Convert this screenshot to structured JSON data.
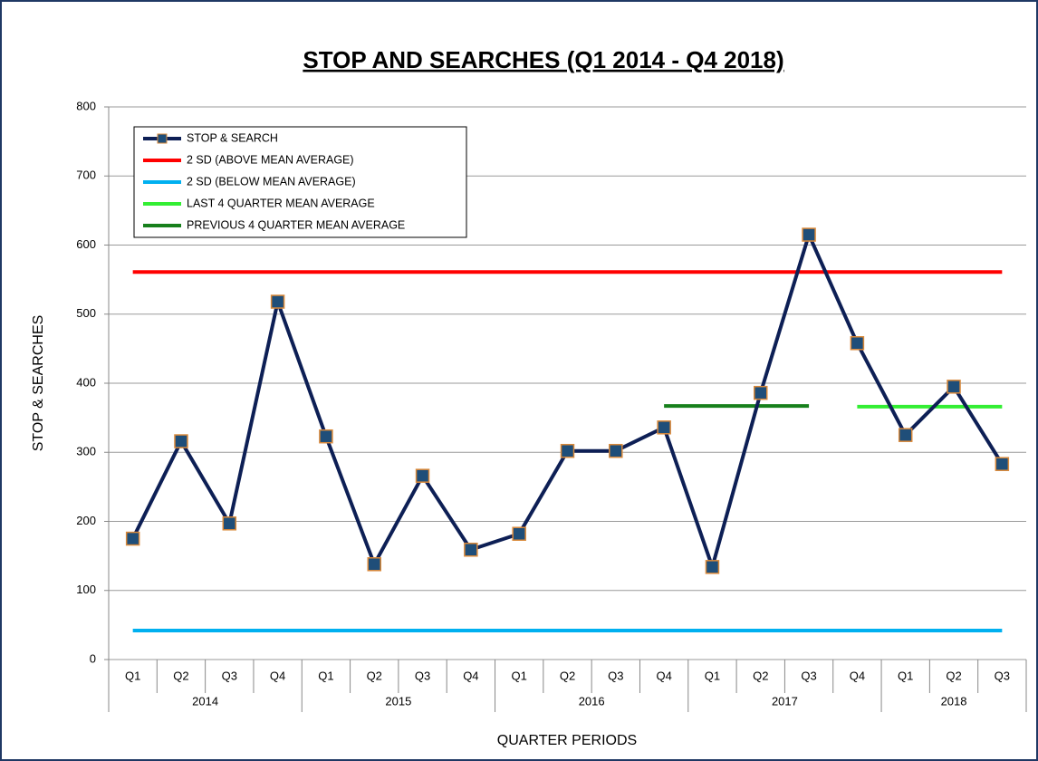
{
  "chart_data": {
    "type": "line",
    "title": "STOP AND SEARCHES (Q1 2014 - Q4 2018)",
    "y_label": "STOP & SEARCHES",
    "x_label": "QUARTER PERIODS",
    "categories": [
      "Q1",
      "Q2",
      "Q3",
      "Q4",
      "Q1",
      "Q2",
      "Q3",
      "Q4",
      "Q1",
      "Q2",
      "Q3",
      "Q4",
      "Q1",
      "Q2",
      "Q3",
      "Q4",
      "Q1",
      "Q2",
      "Q3"
    ],
    "x_groups": [
      {
        "name": "2014",
        "size": 4
      },
      {
        "name": "2015",
        "size": 4
      },
      {
        "name": "2016",
        "size": 4
      },
      {
        "name": "2017",
        "size": 4
      },
      {
        "name": "2018",
        "size": 3
      }
    ],
    "series": [
      {
        "name": "STOP & SEARCH",
        "color": "#0d1f55",
        "marker": "square",
        "marker_fill": "#1f4e79",
        "marker_stroke": "#d9893a",
        "values": [
          175,
          316,
          197,
          518,
          323,
          138,
          266,
          159,
          182,
          302,
          302,
          336,
          134,
          386,
          615,
          458,
          325,
          395,
          283
        ]
      },
      {
        "name": "2 SD (ABOVE MEAN AVERAGE)",
        "color": "#ff0000",
        "values": [
          561,
          561,
          561,
          561,
          561,
          561,
          561,
          561,
          561,
          561,
          561,
          561,
          561,
          561,
          561,
          561,
          561,
          561,
          561
        ]
      },
      {
        "name": "2 SD (BELOW MEAN AVERAGE)",
        "color": "#00b0f0",
        "values": [
          42,
          42,
          42,
          42,
          42,
          42,
          42,
          42,
          42,
          42,
          42,
          42,
          42,
          42,
          42,
          42,
          42,
          42,
          42
        ]
      },
      {
        "name": "LAST 4 QUARTER MEAN AVERAGE",
        "color": "#33ee33",
        "values": [
          null,
          null,
          null,
          null,
          null,
          null,
          null,
          null,
          null,
          null,
          null,
          null,
          null,
          null,
          null,
          366,
          366,
          366,
          366
        ]
      },
      {
        "name": "PREVIOUS 4 QUARTER MEAN AVERAGE",
        "color": "#17801c",
        "values": [
          null,
          null,
          null,
          null,
          null,
          null,
          null,
          null,
          null,
          null,
          null,
          367,
          367,
          367,
          367,
          null,
          null,
          null,
          null
        ]
      }
    ],
    "ylim": [
      0,
      800
    ],
    "yticks": [
      0,
      100,
      200,
      300,
      400,
      500,
      600,
      700,
      800
    ],
    "grid": true,
    "legend": "top-left"
  }
}
